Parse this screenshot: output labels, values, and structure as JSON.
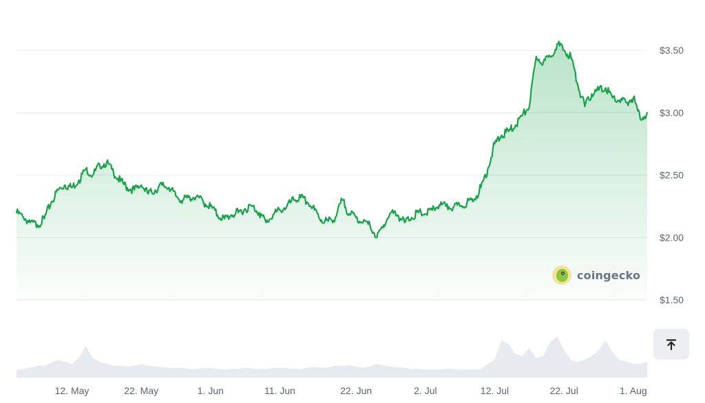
{
  "chart_data": {
    "type": "area",
    "title": "",
    "xlabel": "",
    "ylabel": "",
    "x_ticks": [
      "12. May",
      "22. May",
      "1. Jun",
      "11. Jun",
      "22. Jun",
      "2. Jul",
      "12. Jul",
      "22. Jul",
      "1. Aug"
    ],
    "y_ticks": [
      "$1.50",
      "$2.00",
      "$2.50",
      "$3.00",
      "$3.50"
    ],
    "ylim": [
      1.5,
      3.6
    ],
    "xlim": [
      "2024-05-04",
      "2024-08-03"
    ],
    "grid": true,
    "series": [
      {
        "color": "#16a34a",
        "points": [
          [
            "2024-05-04",
            2.2
          ],
          [
            "2024-05-05",
            2.16
          ],
          [
            "2024-05-06",
            2.12
          ],
          [
            "2024-05-07",
            2.1
          ],
          [
            "2024-05-08",
            2.15
          ],
          [
            "2024-05-09",
            2.28
          ],
          [
            "2024-05-10",
            2.38
          ],
          [
            "2024-05-11",
            2.42
          ],
          [
            "2024-05-12",
            2.4
          ],
          [
            "2024-05-13",
            2.46
          ],
          [
            "2024-05-14",
            2.55
          ],
          [
            "2024-05-15",
            2.5
          ],
          [
            "2024-05-16",
            2.58
          ],
          [
            "2024-05-17",
            2.6
          ],
          [
            "2024-05-18",
            2.52
          ],
          [
            "2024-05-19",
            2.45
          ],
          [
            "2024-05-20",
            2.4
          ],
          [
            "2024-05-21",
            2.38
          ],
          [
            "2024-05-22",
            2.42
          ],
          [
            "2024-05-23",
            2.35
          ],
          [
            "2024-05-24",
            2.38
          ],
          [
            "2024-05-25",
            2.42
          ],
          [
            "2024-05-26",
            2.4
          ],
          [
            "2024-05-27",
            2.33
          ],
          [
            "2024-05-28",
            2.3
          ],
          [
            "2024-05-29",
            2.32
          ],
          [
            "2024-05-30",
            2.33
          ],
          [
            "2024-05-31",
            2.28
          ],
          [
            "2024-06-01",
            2.25
          ],
          [
            "2024-06-02",
            2.18
          ],
          [
            "2024-06-03",
            2.15
          ],
          [
            "2024-06-04",
            2.18
          ],
          [
            "2024-06-05",
            2.2
          ],
          [
            "2024-06-06",
            2.23
          ],
          [
            "2024-06-07",
            2.25
          ],
          [
            "2024-06-08",
            2.2
          ],
          [
            "2024-06-09",
            2.12
          ],
          [
            "2024-06-10",
            2.18
          ],
          [
            "2024-06-11",
            2.22
          ],
          [
            "2024-06-12",
            2.25
          ],
          [
            "2024-06-13",
            2.3
          ],
          [
            "2024-06-14",
            2.32
          ],
          [
            "2024-06-15",
            2.28
          ],
          [
            "2024-06-16",
            2.22
          ],
          [
            "2024-06-17",
            2.14
          ],
          [
            "2024-06-18",
            2.13
          ],
          [
            "2024-06-19",
            2.16
          ],
          [
            "2024-06-20",
            2.3
          ],
          [
            "2024-06-21",
            2.19
          ],
          [
            "2024-06-22",
            2.16
          ],
          [
            "2024-06-23",
            2.12
          ],
          [
            "2024-06-24",
            2.1
          ],
          [
            "2024-06-25",
            2.0
          ],
          [
            "2024-06-26",
            2.1
          ],
          [
            "2024-06-27",
            2.2
          ],
          [
            "2024-06-28",
            2.18
          ],
          [
            "2024-06-29",
            2.12
          ],
          [
            "2024-06-30",
            2.16
          ],
          [
            "2024-07-01",
            2.2
          ],
          [
            "2024-07-02",
            2.19
          ],
          [
            "2024-07-03",
            2.22
          ],
          [
            "2024-07-04",
            2.26
          ],
          [
            "2024-07-05",
            2.25
          ],
          [
            "2024-07-06",
            2.24
          ],
          [
            "2024-07-07",
            2.25
          ],
          [
            "2024-07-08",
            2.28
          ],
          [
            "2024-07-09",
            2.3
          ],
          [
            "2024-07-10",
            2.4
          ],
          [
            "2024-07-11",
            2.55
          ],
          [
            "2024-07-12",
            2.75
          ],
          [
            "2024-07-13",
            2.82
          ],
          [
            "2024-07-14",
            2.85
          ],
          [
            "2024-07-15",
            2.9
          ],
          [
            "2024-07-16",
            2.98
          ],
          [
            "2024-07-17",
            3.05
          ],
          [
            "2024-07-18",
            3.45
          ],
          [
            "2024-07-19",
            3.4
          ],
          [
            "2024-07-20",
            3.45
          ],
          [
            "2024-07-21",
            3.55
          ],
          [
            "2024-07-22",
            3.5
          ],
          [
            "2024-07-23",
            3.45
          ],
          [
            "2024-07-24",
            3.22
          ],
          [
            "2024-07-25",
            3.05
          ],
          [
            "2024-07-26",
            3.15
          ],
          [
            "2024-07-27",
            3.18
          ],
          [
            "2024-07-28",
            3.2
          ],
          [
            "2024-07-29",
            3.12
          ],
          [
            "2024-07-30",
            3.1
          ],
          [
            "2024-07-31",
            3.08
          ],
          [
            "2024-08-01",
            3.12
          ],
          [
            "2024-08-02",
            2.95
          ],
          [
            "2024-08-03",
            3.0
          ]
        ]
      }
    ],
    "volume": {
      "color": "#e7eaee",
      "values": [
        0.2,
        0.22,
        0.25,
        0.3,
        0.3,
        0.38,
        0.45,
        0.4,
        0.35,
        0.5,
        0.8,
        0.5,
        0.4,
        0.35,
        0.3,
        0.3,
        0.28,
        0.3,
        0.33,
        0.3,
        0.28,
        0.26,
        0.25,
        0.24,
        0.25,
        0.22,
        0.22,
        0.24,
        0.24,
        0.22,
        0.2,
        0.22,
        0.22,
        0.25,
        0.23,
        0.22,
        0.22,
        0.24,
        0.25,
        0.24,
        0.23,
        0.22,
        0.25,
        0.27,
        0.25,
        0.26,
        0.3,
        0.3,
        0.32,
        0.28,
        0.25,
        0.28,
        0.35,
        0.3,
        0.28,
        0.26,
        0.25,
        0.22,
        0.22,
        0.2,
        0.2,
        0.2,
        0.22,
        0.22,
        0.2,
        0.2,
        0.2,
        0.22,
        0.35,
        0.45,
        0.95,
        0.85,
        0.6,
        0.55,
        0.75,
        0.5,
        0.55,
        0.9,
        1.05,
        0.7,
        0.45,
        0.4,
        0.45,
        0.55,
        0.7,
        0.95,
        0.65,
        0.45,
        0.4,
        0.35,
        0.35,
        0.4
      ]
    }
  },
  "branding": {
    "name": "coingecko"
  },
  "controls": {
    "scroll_top_icon": "arrow-up-to-line-icon"
  }
}
